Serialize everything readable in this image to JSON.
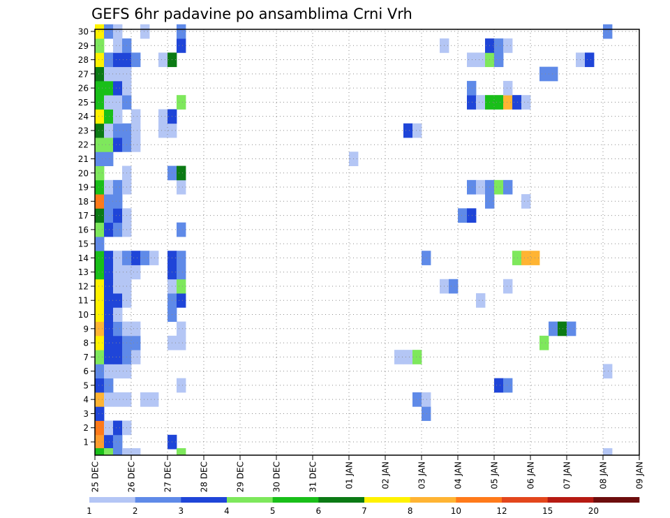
{
  "chart_data": {
    "type": "heatmap",
    "title": "GEFS 6hr padavine po ansamblima Crni Vrh",
    "y_categories": [
      "1",
      "2",
      "3",
      "4",
      "5",
      "6",
      "7",
      "8",
      "9",
      "10",
      "11",
      "12",
      "13",
      "14",
      "15",
      "16",
      "17",
      "18",
      "19",
      "20",
      "21",
      "22",
      "23",
      "24",
      "25",
      "26",
      "27",
      "28",
      "29",
      "30"
    ],
    "x_tick_labels": [
      "25 DEC",
      "26 DEC",
      "27 DEC",
      "28 DEC",
      "29 DEC",
      "30 DEC",
      "31 DEC",
      "01 JAN",
      "02 JAN",
      "03 JAN",
      "04 JAN",
      "05 JAN",
      "06 JAN",
      "07 JAN",
      "08 JAN",
      "09 JAN"
    ],
    "x_step": "6hr",
    "grid": true,
    "colorbar": {
      "levels": [
        "1",
        "2",
        "3",
        "4",
        "5",
        "6",
        "7",
        "8",
        "10",
        "12",
        "15",
        "20"
      ],
      "colors": [
        "#b4c6f5",
        "#5f8ae8",
        "#1f45d8",
        "#7ee85c",
        "#19bf19",
        "#0b7a14",
        "#fff200",
        "#ffb433",
        "#ff7a1a",
        "#e3461c",
        "#b61a12",
        "#6d0d0d"
      ]
    },
    "rows": [
      {
        "member": "1",
        "cells": [
          [
            0,
            "#ff9d2e"
          ],
          [
            1,
            "#1f45d8"
          ],
          [
            2,
            "#5f8ae8"
          ],
          [
            8,
            "#1f45d8"
          ]
        ]
      },
      {
        "member": "2",
        "cells": [
          [
            0,
            "#ff7a1a"
          ],
          [
            1,
            "#b4c6f5"
          ],
          [
            2,
            "#1f45d8"
          ],
          [
            3,
            "#b4c6f5"
          ]
        ]
      },
      {
        "member": "3",
        "cells": [
          [
            0,
            "#1f45d8"
          ],
          [
            36,
            "#5f8ae8"
          ]
        ]
      },
      {
        "member": "4",
        "cells": [
          [
            0,
            "#ffb433"
          ],
          [
            1,
            "#b4c6f5"
          ],
          [
            2,
            "#b4c6f5"
          ],
          [
            3,
            "#b4c6f5"
          ],
          [
            5,
            "#b4c6f5"
          ],
          [
            6,
            "#b4c6f5"
          ],
          [
            35,
            "#5f8ae8"
          ],
          [
            36,
            "#b4c6f5"
          ]
        ]
      },
      {
        "member": "5",
        "cells": [
          [
            0,
            "#1f45d8"
          ],
          [
            1,
            "#5f8ae8"
          ],
          [
            9,
            "#b4c6f5"
          ],
          [
            44,
            "#1f45d8"
          ],
          [
            45,
            "#5f8ae8"
          ]
        ]
      },
      {
        "member": "6",
        "cells": [
          [
            0,
            "#5f8ae8"
          ],
          [
            1,
            "#b4c6f5"
          ],
          [
            2,
            "#b4c6f5"
          ],
          [
            3,
            "#b4c6f5"
          ],
          [
            56,
            "#b4c6f5"
          ]
        ]
      },
      {
        "member": "7",
        "cells": [
          [
            0,
            "#7ee85c"
          ],
          [
            1,
            "#1f45d8"
          ],
          [
            2,
            "#1f45d8"
          ],
          [
            3,
            "#5f8ae8"
          ],
          [
            4,
            "#b4c6f5"
          ],
          [
            33,
            "#b4c6f5"
          ],
          [
            34,
            "#b4c6f5"
          ],
          [
            35,
            "#7ee85c"
          ]
        ]
      },
      {
        "member": "8",
        "cells": [
          [
            0,
            "#fff200"
          ],
          [
            1,
            "#1f45d8"
          ],
          [
            2,
            "#1f45d8"
          ],
          [
            3,
            "#5f8ae8"
          ],
          [
            4,
            "#5f8ae8"
          ],
          [
            8,
            "#b4c6f5"
          ],
          [
            9,
            "#b4c6f5"
          ],
          [
            49,
            "#7ee85c"
          ]
        ]
      },
      {
        "member": "9",
        "cells": [
          [
            0,
            "#ffb433"
          ],
          [
            1,
            "#1f45d8"
          ],
          [
            2,
            "#5f8ae8"
          ],
          [
            3,
            "#b4c6f5"
          ],
          [
            4,
            "#b4c6f5"
          ],
          [
            9,
            "#b4c6f5"
          ],
          [
            50,
            "#5f8ae8"
          ],
          [
            51,
            "#0b7a14"
          ],
          [
            52,
            "#5f8ae8"
          ]
        ]
      },
      {
        "member": "10",
        "cells": [
          [
            0,
            "#fff200"
          ],
          [
            1,
            "#1f45d8"
          ],
          [
            2,
            "#b4c6f5"
          ],
          [
            8,
            "#5f8ae8"
          ]
        ]
      },
      {
        "member": "11",
        "cells": [
          [
            0,
            "#fff200"
          ],
          [
            1,
            "#1f45d8"
          ],
          [
            2,
            "#1f45d8"
          ],
          [
            3,
            "#b4c6f5"
          ],
          [
            8,
            "#5f8ae8"
          ],
          [
            9,
            "#1f45d8"
          ],
          [
            42,
            "#b4c6f5"
          ]
        ]
      },
      {
        "member": "12",
        "cells": [
          [
            0,
            "#fff200"
          ],
          [
            1,
            "#1f45d8"
          ],
          [
            2,
            "#b4c6f5"
          ],
          [
            3,
            "#b4c6f5"
          ],
          [
            8,
            "#b4c6f5"
          ],
          [
            9,
            "#7ee85c"
          ],
          [
            38,
            "#b4c6f5"
          ],
          [
            39,
            "#5f8ae8"
          ],
          [
            45,
            "#b4c6f5"
          ]
        ]
      },
      {
        "member": "13",
        "cells": [
          [
            0,
            "#19bf19"
          ],
          [
            1,
            "#1f45d8"
          ],
          [
            2,
            "#b4c6f5"
          ],
          [
            3,
            "#b4c6f5"
          ],
          [
            4,
            "#b4c6f5"
          ],
          [
            8,
            "#1f45d8"
          ],
          [
            9,
            "#5f8ae8"
          ]
        ]
      },
      {
        "member": "14",
        "cells": [
          [
            0,
            "#19bf19"
          ],
          [
            1,
            "#1f45d8"
          ],
          [
            2,
            "#b4c6f5"
          ],
          [
            3,
            "#5f8ae8"
          ],
          [
            4,
            "#1f45d8"
          ],
          [
            5,
            "#5f8ae8"
          ],
          [
            6,
            "#b4c6f5"
          ],
          [
            8,
            "#1f45d8"
          ],
          [
            9,
            "#5f8ae8"
          ],
          [
            36,
            "#5f8ae8"
          ],
          [
            46,
            "#7ee85c"
          ],
          [
            47,
            "#ffb433"
          ],
          [
            48,
            "#ffb433"
          ]
        ]
      },
      {
        "member": "15",
        "cells": [
          [
            0,
            "#5f8ae8"
          ]
        ]
      },
      {
        "member": "16",
        "cells": [
          [
            0,
            "#7ee85c"
          ],
          [
            1,
            "#1f45d8"
          ],
          [
            2,
            "#5f8ae8"
          ],
          [
            3,
            "#b4c6f5"
          ],
          [
            9,
            "#5f8ae8"
          ]
        ]
      },
      {
        "member": "17",
        "cells": [
          [
            0,
            "#0b7a14"
          ],
          [
            1,
            "#5f8ae8"
          ],
          [
            2,
            "#1f45d8"
          ],
          [
            3,
            "#b4c6f5"
          ],
          [
            40,
            "#5f8ae8"
          ],
          [
            41,
            "#1f45d8"
          ]
        ]
      },
      {
        "member": "18",
        "cells": [
          [
            0,
            "#ff7a1a"
          ],
          [
            1,
            "#5f8ae8"
          ],
          [
            2,
            "#5f8ae8"
          ],
          [
            43,
            "#5f8ae8"
          ],
          [
            47,
            "#b4c6f5"
          ]
        ]
      },
      {
        "member": "19",
        "cells": [
          [
            0,
            "#19bf19"
          ],
          [
            1,
            "#b4c6f5"
          ],
          [
            2,
            "#5f8ae8"
          ],
          [
            3,
            "#b4c6f5"
          ],
          [
            9,
            "#b4c6f5"
          ],
          [
            41,
            "#5f8ae8"
          ],
          [
            42,
            "#b4c6f5"
          ],
          [
            43,
            "#5f8ae8"
          ],
          [
            44,
            "#7ee85c"
          ],
          [
            45,
            "#5f8ae8"
          ]
        ]
      },
      {
        "member": "20",
        "cells": [
          [
            0,
            "#7ee85c"
          ],
          [
            3,
            "#b4c6f5"
          ],
          [
            8,
            "#5f8ae8"
          ],
          [
            9,
            "#0b7a14"
          ]
        ]
      },
      {
        "member": "21",
        "cells": [
          [
            0,
            "#5f8ae8"
          ],
          [
            1,
            "#5f8ae8"
          ],
          [
            28,
            "#b4c6f5"
          ]
        ]
      },
      {
        "member": "22",
        "cells": [
          [
            0,
            "#7ee85c"
          ],
          [
            1,
            "#7ee85c"
          ],
          [
            2,
            "#1f45d8"
          ],
          [
            3,
            "#5f8ae8"
          ],
          [
            4,
            "#b4c6f5"
          ]
        ]
      },
      {
        "member": "23",
        "cells": [
          [
            0,
            "#0b7a14"
          ],
          [
            1,
            "#b4c6f5"
          ],
          [
            2,
            "#5f8ae8"
          ],
          [
            3,
            "#5f8ae8"
          ],
          [
            4,
            "#b4c6f5"
          ],
          [
            7,
            "#b4c6f5"
          ],
          [
            8,
            "#b4c6f5"
          ],
          [
            34,
            "#1f45d8"
          ],
          [
            35,
            "#b4c6f5"
          ]
        ]
      },
      {
        "member": "24",
        "cells": [
          [
            0,
            "#fff200"
          ],
          [
            1,
            "#19bf19"
          ],
          [
            2,
            "#b4c6f5"
          ],
          [
            4,
            "#b4c6f5"
          ],
          [
            7,
            "#b4c6f5"
          ],
          [
            8,
            "#1f45d8"
          ]
        ]
      },
      {
        "member": "25",
        "cells": [
          [
            0,
            "#19bf19"
          ],
          [
            1,
            "#b4c6f5"
          ],
          [
            2,
            "#b4c6f5"
          ],
          [
            3,
            "#5f8ae8"
          ],
          [
            9,
            "#7ee85c"
          ],
          [
            41,
            "#1f45d8"
          ],
          [
            42,
            "#b4c6f5"
          ],
          [
            43,
            "#19bf19"
          ],
          [
            44,
            "#19bf19"
          ],
          [
            45,
            "#ffb433"
          ],
          [
            46,
            "#1f45d8"
          ],
          [
            47,
            "#b4c6f5"
          ]
        ]
      },
      {
        "member": "26",
        "cells": [
          [
            0,
            "#19bf19"
          ],
          [
            1,
            "#19bf19"
          ],
          [
            2,
            "#1f45d8"
          ],
          [
            3,
            "#b4c6f5"
          ],
          [
            41,
            "#5f8ae8"
          ],
          [
            45,
            "#b4c6f5"
          ]
        ]
      },
      {
        "member": "27",
        "cells": [
          [
            0,
            "#0b7a14"
          ],
          [
            1,
            "#b4c6f5"
          ],
          [
            2,
            "#b4c6f5"
          ],
          [
            3,
            "#b4c6f5"
          ],
          [
            49,
            "#5f8ae8"
          ],
          [
            50,
            "#5f8ae8"
          ]
        ]
      },
      {
        "member": "28",
        "cells": [
          [
            0,
            "#fff200"
          ],
          [
            1,
            "#5f8ae8"
          ],
          [
            2,
            "#1f45d8"
          ],
          [
            3,
            "#1f45d8"
          ],
          [
            4,
            "#5f8ae8"
          ],
          [
            7,
            "#b4c6f5"
          ],
          [
            8,
            "#0b7a14"
          ],
          [
            41,
            "#b4c6f5"
          ],
          [
            42,
            "#b4c6f5"
          ],
          [
            43,
            "#7ee85c"
          ],
          [
            44,
            "#5f8ae8"
          ],
          [
            53,
            "#b4c6f5"
          ],
          [
            54,
            "#1f45d8"
          ]
        ]
      },
      {
        "member": "29",
        "cells": [
          [
            0,
            "#7ee85c"
          ],
          [
            2,
            "#b4c6f5"
          ],
          [
            3,
            "#5f8ae8"
          ],
          [
            9,
            "#1f45d8"
          ],
          [
            38,
            "#b4c6f5"
          ],
          [
            43,
            "#1f45d8"
          ],
          [
            44,
            "#5f8ae8"
          ],
          [
            45,
            "#b4c6f5"
          ]
        ]
      },
      {
        "member": "30",
        "cells": [
          [
            0,
            "#fff200"
          ],
          [
            1,
            "#5f8ae8"
          ],
          [
            2,
            "#b4c6f5"
          ],
          [
            5,
            "#b4c6f5"
          ],
          [
            9,
            "#5f8ae8"
          ],
          [
            56,
            "#5f8ae8"
          ]
        ]
      }
    ],
    "bottom_row_cells": [
      [
        0,
        "#19bf19"
      ],
      [
        1,
        "#7ee85c"
      ],
      [
        2,
        "#5f8ae8"
      ],
      [
        3,
        "#b4c6f5"
      ],
      [
        4,
        "#b4c6f5"
      ],
      [
        9,
        "#7ee85c"
      ],
      [
        56,
        "#b4c6f5"
      ]
    ]
  }
}
